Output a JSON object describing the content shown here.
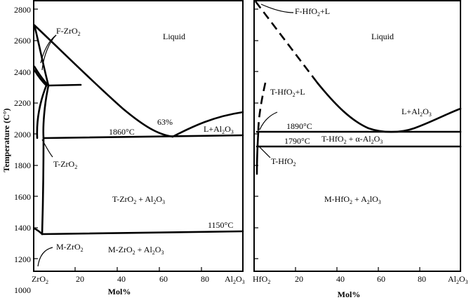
{
  "left": {
    "ylabel": "Temperature (C°)",
    "yticks": [
      "2800",
      "2600",
      "2400",
      "2200",
      "2000",
      "1800",
      "1600",
      "1400",
      "1200",
      "1000"
    ],
    "xticks": [
      "20",
      "40",
      "60",
      "80"
    ],
    "x_start": "ZrO",
    "x_start_sub": "2",
    "x_end": "Al",
    "x_end_sub1": "2",
    "x_end_mid": "O",
    "x_end_sub2": "3",
    "xlabel": "Mol%",
    "labels": {
      "f_zro2": "F-ZrO",
      "f_zro2_sub": "2",
      "liquid": "Liquid",
      "pct": "63%",
      "t1860": "1860°C",
      "l_al2o3": "L+Al",
      "l_al2o3_sub1": "2",
      "l_al2o3_mid": "O",
      "l_al2o3_sub2": "3",
      "t_zro2": "T-ZrO",
      "t_zro2_sub": "2",
      "tz_al": "T-ZrO",
      "tz_al_sub": "2",
      "tz_al_mid": " + Al",
      "tz_al_sub2": "2",
      "tz_al_mid2": "O",
      "tz_al_sub3": "3",
      "t1150": "1150°C",
      "m_zro2": "M-ZrO",
      "m_zro2_sub": "2",
      "mz_al": "M-ZrO",
      "mz_al_sub": "2",
      "mz_al_mid": " + Al",
      "mz_al_sub2": "2",
      "mz_al_mid2": "O",
      "mz_al_sub3": "3"
    }
  },
  "right": {
    "xticks": [
      "20",
      "40",
      "60",
      "80"
    ],
    "x_start": "HfO",
    "x_start_sub": "2",
    "x_end": "Al",
    "x_end_sub1": "2",
    "x_end_mid": "O",
    "x_end_sub2": "3",
    "xlabel": "Mol%",
    "labels": {
      "f_hfo2": "F-HfO",
      "f_hfo2_sub": "2",
      "f_hfo2_tail": "+L",
      "liquid": "Liquid",
      "t_hfo2_l": "T-HfO",
      "t_hfo2_l_sub": "2",
      "t_hfo2_l_tail": "+L",
      "l_al2o3": "L+Al",
      "l_al2o3_sub1": "2",
      "l_al2o3_mid": "O",
      "l_al2o3_sub2": "3",
      "t1890": "1890°C",
      "t1790": "1790°C",
      "th_al": "T-HfO",
      "th_al_sub": "2",
      "th_al_mid": " + α-Al",
      "th_al_sub2": "2",
      "th_al_mid2": "O",
      "th_al_sub3": "3",
      "t_hfo2": "T-HfO",
      "t_hfo2_sub": "2",
      "mh_al": "M-HfO",
      "mh_al_sub": "2",
      "mh_al_mid": " + A",
      "mh_al_sub2": "2",
      "mh_al_mid2": "lO",
      "mh_al_sub3": "3"
    }
  }
}
